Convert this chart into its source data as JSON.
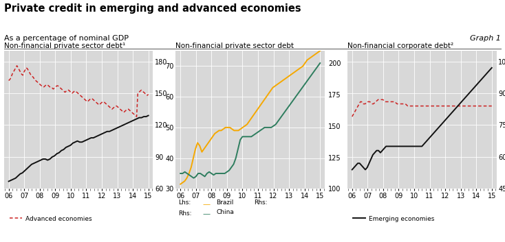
{
  "title": "Private credit in emerging and advanced economies",
  "subtitle": "As a percentage of nominal GDP",
  "graph_label": "Graph 1",
  "separator_color": "#c0392b",
  "panel1": {
    "title": "Non-financial private sector debt¹",
    "ylim": [
      60,
      190
    ],
    "yticks": [
      60,
      90,
      120,
      150,
      180
    ],
    "x_years": [
      "06",
      "07",
      "08",
      "09",
      "10",
      "11",
      "12",
      "13",
      "14",
      "15"
    ],
    "advanced": [
      162,
      163,
      165,
      168,
      170,
      172,
      174,
      176,
      174,
      172,
      170,
      168,
      167,
      170,
      172,
      174,
      173,
      171,
      169,
      167,
      166,
      165,
      163,
      162,
      161,
      160,
      159,
      158,
      157,
      156,
      156,
      157,
      158,
      158,
      157,
      156,
      155,
      155,
      154,
      155,
      156,
      157,
      157,
      156,
      155,
      154,
      153,
      152,
      151,
      152,
      153,
      153,
      152,
      151,
      150,
      151,
      152,
      152,
      151,
      150,
      149,
      148,
      147,
      146,
      145,
      144,
      143,
      142,
      143,
      144,
      145,
      145,
      144,
      143,
      142,
      141,
      140,
      139,
      140,
      141,
      142,
      142,
      141,
      140,
      139,
      138,
      137,
      136,
      135,
      136,
      137,
      138,
      138,
      137,
      136,
      135,
      134,
      133,
      132,
      133,
      134,
      135,
      135,
      134,
      133,
      132,
      131,
      130,
      129,
      128,
      150,
      151,
      152,
      153,
      152,
      151,
      150,
      149,
      148,
      149
    ],
    "emerging": [
      67,
      68,
      69,
      70,
      72,
      74,
      75,
      77,
      79,
      81,
      83,
      84,
      85,
      86,
      87,
      88,
      88,
      87,
      88,
      90,
      91,
      93,
      94,
      96,
      97,
      99,
      100,
      101,
      103,
      104,
      105,
      104,
      104,
      105,
      106,
      107,
      108,
      108,
      109,
      110,
      111,
      112,
      113,
      114,
      114,
      115,
      116,
      117,
      118,
      119,
      120,
      121,
      122,
      123,
      124,
      125,
      126,
      127,
      127,
      128,
      128,
      129
    ]
  },
  "panel2": {
    "title": "Non-financial private sector debt",
    "ylim_lhs": [
      30,
      75
    ],
    "yticks_lhs": [
      30,
      40,
      50,
      60,
      70
    ],
    "ylim_rhs": [
      100,
      210
    ],
    "yticks_rhs": [
      100,
      125,
      150,
      175,
      200
    ],
    "x_years": [
      "06",
      "07",
      "08",
      "09",
      "10",
      "11",
      "12",
      "13",
      "14",
      "15"
    ],
    "brazil": [
      31.5,
      32,
      32.5,
      33.5,
      35,
      37,
      40,
      43,
      45,
      44,
      42,
      43,
      44,
      45,
      46,
      47,
      48,
      48.5,
      49,
      49,
      49.5,
      50,
      50,
      50,
      49.5,
      49,
      49,
      49,
      49.5,
      50,
      50.5,
      51,
      52,
      53,
      54,
      55,
      56,
      57,
      58,
      59,
      60,
      61,
      62,
      63,
      63.5,
      64,
      64.5,
      65,
      65.5,
      66,
      66.5,
      67,
      67.5,
      68,
      68.5,
      69,
      69.5,
      70,
      71,
      72,
      72.5,
      73,
      73.5,
      74,
      74.5,
      75
    ],
    "china": [
      35,
      35,
      35.5,
      35,
      34.5,
      34,
      33.5,
      34,
      35,
      35,
      34.5,
      34,
      35,
      35.5,
      35,
      34.5,
      35,
      35,
      35,
      35,
      35,
      35.5,
      36,
      37,
      38,
      40,
      43,
      46,
      47,
      47,
      47,
      47,
      47,
      47.5,
      48,
      48.5,
      49,
      49.5,
      50,
      50,
      50,
      50,
      50.5,
      51,
      52,
      53,
      54,
      55,
      56,
      57,
      58,
      59,
      60,
      61,
      62,
      63,
      64,
      65,
      66,
      67,
      68,
      69,
      70,
      71
    ]
  },
  "panel3": {
    "title": "Non-financial corporate debt²",
    "ylim": [
      45,
      110
    ],
    "yticks": [
      45,
      60,
      75,
      90,
      105
    ],
    "x_years": [
      "06",
      "07",
      "08",
      "09",
      "10",
      "11",
      "12",
      "13",
      "14",
      "15"
    ],
    "advanced": [
      79,
      80,
      81,
      82,
      83,
      84,
      85,
      86,
      86,
      85,
      85,
      85,
      85.5,
      86,
      86,
      86,
      85.5,
      85,
      85,
      85.5,
      86,
      86.5,
      87,
      87,
      87,
      87,
      87,
      86.5,
      86,
      86,
      86,
      86,
      86,
      86,
      86,
      86,
      86,
      85.5,
      85,
      85,
      85,
      85,
      85,
      85,
      85,
      85,
      84.5,
      84,
      84,
      84,
      84,
      84,
      84,
      84,
      84,
      84,
      84,
      84,
      84,
      84,
      84,
      84,
      84,
      84,
      84,
      84,
      84,
      84,
      84,
      84,
      84,
      84,
      84,
      84,
      84,
      84,
      84,
      84,
      84,
      84,
      84,
      84,
      84,
      84,
      84,
      84,
      84,
      84,
      84,
      84,
      84,
      84,
      84,
      84,
      84,
      84,
      84,
      84,
      84,
      84,
      84,
      84,
      84,
      84,
      84,
      84,
      84,
      84,
      84,
      84,
      84,
      84,
      84,
      84,
      84,
      84,
      84,
      84,
      84
    ],
    "emerging": [
      54,
      55,
      56,
      57,
      57,
      56,
      55,
      54,
      55,
      57,
      59,
      61,
      62,
      63,
      63,
      62,
      63,
      64,
      65,
      65,
      65,
      65,
      65,
      65,
      65,
      65,
      65,
      65,
      65,
      65,
      65,
      65,
      65,
      65,
      65,
      65,
      65,
      65,
      66,
      67,
      68,
      69,
      70,
      71,
      72,
      73,
      74,
      75,
      76,
      77,
      78,
      79,
      80,
      81,
      82,
      83,
      84,
      85,
      86,
      87,
      88,
      89,
      90,
      91,
      92,
      93,
      94,
      95,
      96,
      97,
      98,
      99,
      100,
      101,
      102
    ]
  },
  "advanced_color": "#cc2222",
  "emerging_color": "#111111",
  "brazil_color": "#f5a800",
  "china_color": "#2e7d5e",
  "plot_bg": "#d8d8d8"
}
